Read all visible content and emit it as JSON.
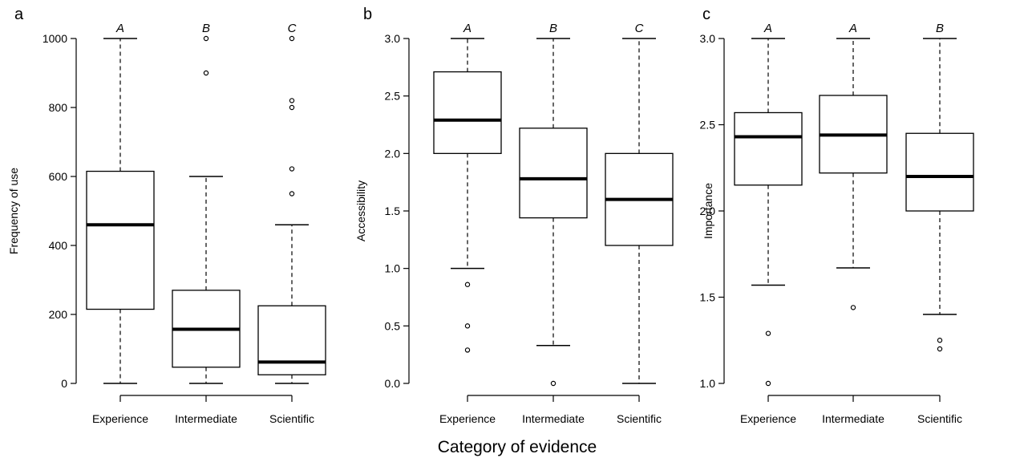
{
  "xlabel": "Category of evidence",
  "chart_data": [
    {
      "type": "box",
      "panel": "a",
      "ylabel": "Frequency of use",
      "ylim": [
        0,
        1000
      ],
      "yticks": [
        "0",
        "200",
        "400",
        "600",
        "800",
        "1000"
      ],
      "categories": [
        "Experience",
        "Intermediate",
        "Scientific"
      ],
      "group_letters": [
        "A",
        "B",
        "C"
      ],
      "boxes": [
        {
          "whisker_low": 0,
          "q1": 215,
          "median": 460,
          "q3": 615,
          "whisker_high": 1000,
          "outliers": []
        },
        {
          "whisker_low": 0,
          "q1": 47,
          "median": 157,
          "q3": 270,
          "whisker_high": 600,
          "outliers": [
            1000,
            900
          ]
        },
        {
          "whisker_low": 0,
          "q1": 25,
          "median": 62,
          "q3": 225,
          "whisker_high": 460,
          "outliers": [
            1000,
            820,
            800,
            622,
            550
          ]
        }
      ]
    },
    {
      "type": "box",
      "panel": "b",
      "ylabel": "Accessibility",
      "ylim": [
        0,
        3
      ],
      "yticks": [
        "0.0",
        "0.5",
        "1.0",
        "1.5",
        "2.0",
        "2.5",
        "3.0"
      ],
      "categories": [
        "Experience",
        "Intermediate",
        "Scientific"
      ],
      "group_letters": [
        "A",
        "B",
        "C"
      ],
      "boxes": [
        {
          "whisker_low": 1.0,
          "q1": 2.0,
          "median": 2.29,
          "q3": 2.71,
          "whisker_high": 3.0,
          "outliers": [
            0.86,
            0.5,
            0.29
          ]
        },
        {
          "whisker_low": 0.33,
          "q1": 1.44,
          "median": 1.78,
          "q3": 2.22,
          "whisker_high": 3.0,
          "outliers": [
            0.0
          ]
        },
        {
          "whisker_low": 0.0,
          "q1": 1.2,
          "median": 1.6,
          "q3": 2.0,
          "whisker_high": 3.0,
          "outliers": []
        }
      ]
    },
    {
      "type": "box",
      "panel": "c",
      "ylabel": "Importance",
      "ylim": [
        1,
        3
      ],
      "yticks": [
        "1.0",
        "1.5",
        "2.0",
        "2.5",
        "3.0"
      ],
      "categories": [
        "Experience",
        "Intermediate",
        "Scientific"
      ],
      "group_letters": [
        "A",
        "A",
        "B"
      ],
      "boxes": [
        {
          "whisker_low": 1.57,
          "q1": 2.15,
          "median": 2.43,
          "q3": 2.57,
          "whisker_high": 3.0,
          "outliers": [
            1.29,
            1.0
          ]
        },
        {
          "whisker_low": 1.67,
          "q1": 2.22,
          "median": 2.44,
          "q3": 2.67,
          "whisker_high": 3.0,
          "outliers": [
            1.44
          ]
        },
        {
          "whisker_low": 1.4,
          "q1": 2.0,
          "median": 2.2,
          "q3": 2.45,
          "whisker_high": 3.0,
          "outliers": [
            1.25,
            1.2
          ]
        }
      ]
    }
  ]
}
